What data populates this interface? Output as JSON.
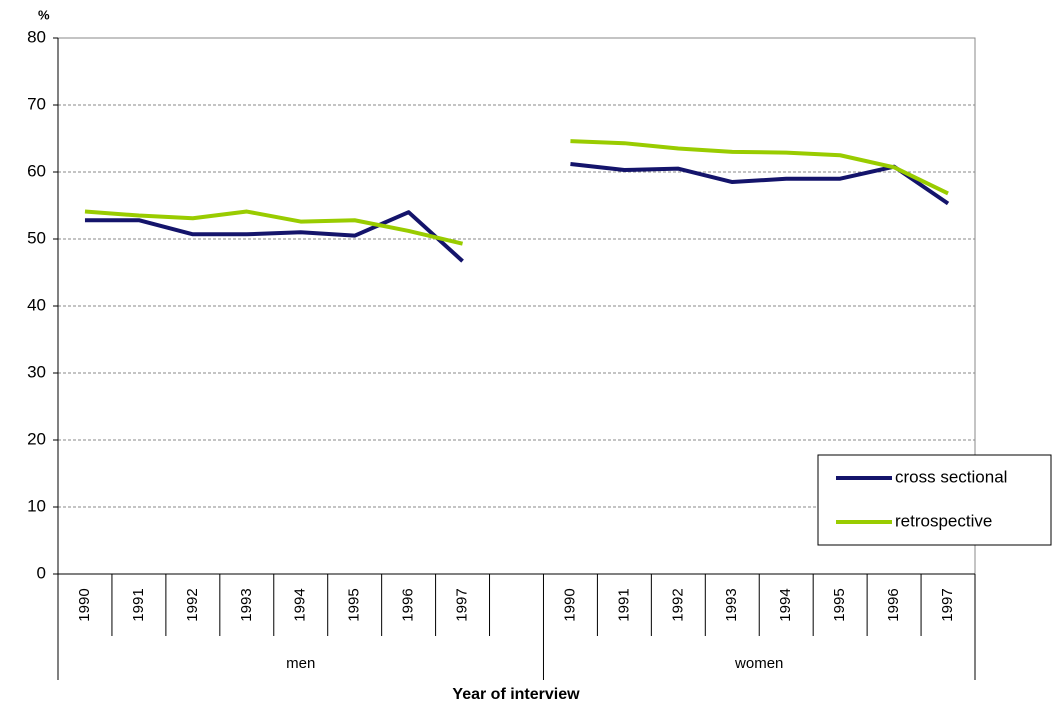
{
  "chart_data": {
    "type": "line",
    "y_label": "%",
    "x_label": "Year of interview",
    "categories": [
      "1990",
      "1991",
      "1992",
      "1993",
      "1994",
      "1995",
      "1996",
      "1997",
      null,
      "1990",
      "1991",
      "1992",
      "1993",
      "1994",
      "1995",
      "1996",
      "1997"
    ],
    "groups": [
      "men",
      "women"
    ],
    "series": [
      {
        "name": "cross sectional",
        "color": "#14146b",
        "values": [
          52.8,
          52.8,
          50.7,
          50.7,
          51.0,
          50.5,
          54.0,
          46.7,
          null,
          61.2,
          60.3,
          60.5,
          58.5,
          59.0,
          59.0,
          60.8,
          55.3
        ]
      },
      {
        "name": "retrospective",
        "color": "#99cc00",
        "values": [
          54.1,
          53.5,
          53.1,
          54.1,
          52.6,
          52.8,
          51.2,
          49.3,
          null,
          64.6,
          64.3,
          63.5,
          63.0,
          62.9,
          62.5,
          60.7,
          56.8
        ]
      }
    ],
    "ylim": [
      0,
      80
    ],
    "yticks": [
      0,
      10,
      20,
      30,
      40,
      50,
      60,
      70,
      80
    ],
    "grid": true,
    "legend": "lower right"
  }
}
